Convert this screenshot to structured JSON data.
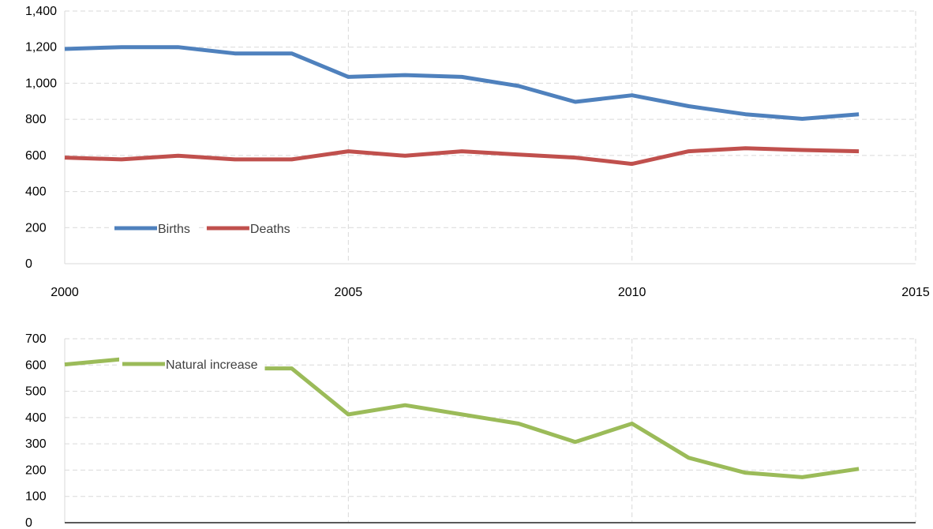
{
  "chart_data": [
    {
      "type": "line",
      "title": "",
      "xlabel": "",
      "ylabel": "",
      "xlim": [
        2000,
        2015
      ],
      "ylim": [
        0,
        1400
      ],
      "x_ticks": [
        "2000",
        "2005",
        "2010",
        "2015"
      ],
      "y_ticks": [
        "0",
        "200",
        "400",
        "600",
        "800",
        "1,000",
        "1,200",
        "1,400"
      ],
      "grid": true,
      "legend_position": "bottom-left",
      "x": [
        2000,
        2001,
        2002,
        2003,
        2004,
        2005,
        2006,
        2007,
        2008,
        2009,
        2010,
        2011,
        2012,
        2013,
        2014
      ],
      "series": [
        {
          "name": "Births",
          "color": "#4f81bd",
          "values": [
            1190,
            1200,
            1200,
            1165,
            1165,
            1035,
            1045,
            1035,
            985,
            897,
            933,
            873,
            828,
            803,
            828
          ]
        },
        {
          "name": "Deaths",
          "color": "#c0504d",
          "values": [
            588,
            578,
            598,
            578,
            578,
            623,
            598,
            623,
            605,
            588,
            553,
            623,
            640,
            630,
            623
          ]
        }
      ]
    },
    {
      "type": "line",
      "title": "",
      "xlabel": "",
      "ylabel": "",
      "xlim": [
        2000,
        2015
      ],
      "ylim": [
        0,
        700
      ],
      "y_ticks": [
        "0",
        "100",
        "200",
        "300",
        "400",
        "500",
        "600",
        "700"
      ],
      "grid": true,
      "legend_position": "top-left",
      "x": [
        2000,
        2001,
        2002,
        2003,
        2004,
        2005,
        2006,
        2007,
        2008,
        2009,
        2010,
        2011,
        2012,
        2013,
        2014
      ],
      "series": [
        {
          "name": "Natural increase",
          "color": "#9bbb59",
          "values": [
            602,
            622,
            602,
            587,
            587,
            412,
            447,
            412,
            377,
            307,
            377,
            247,
            190,
            173,
            205
          ]
        }
      ]
    }
  ]
}
